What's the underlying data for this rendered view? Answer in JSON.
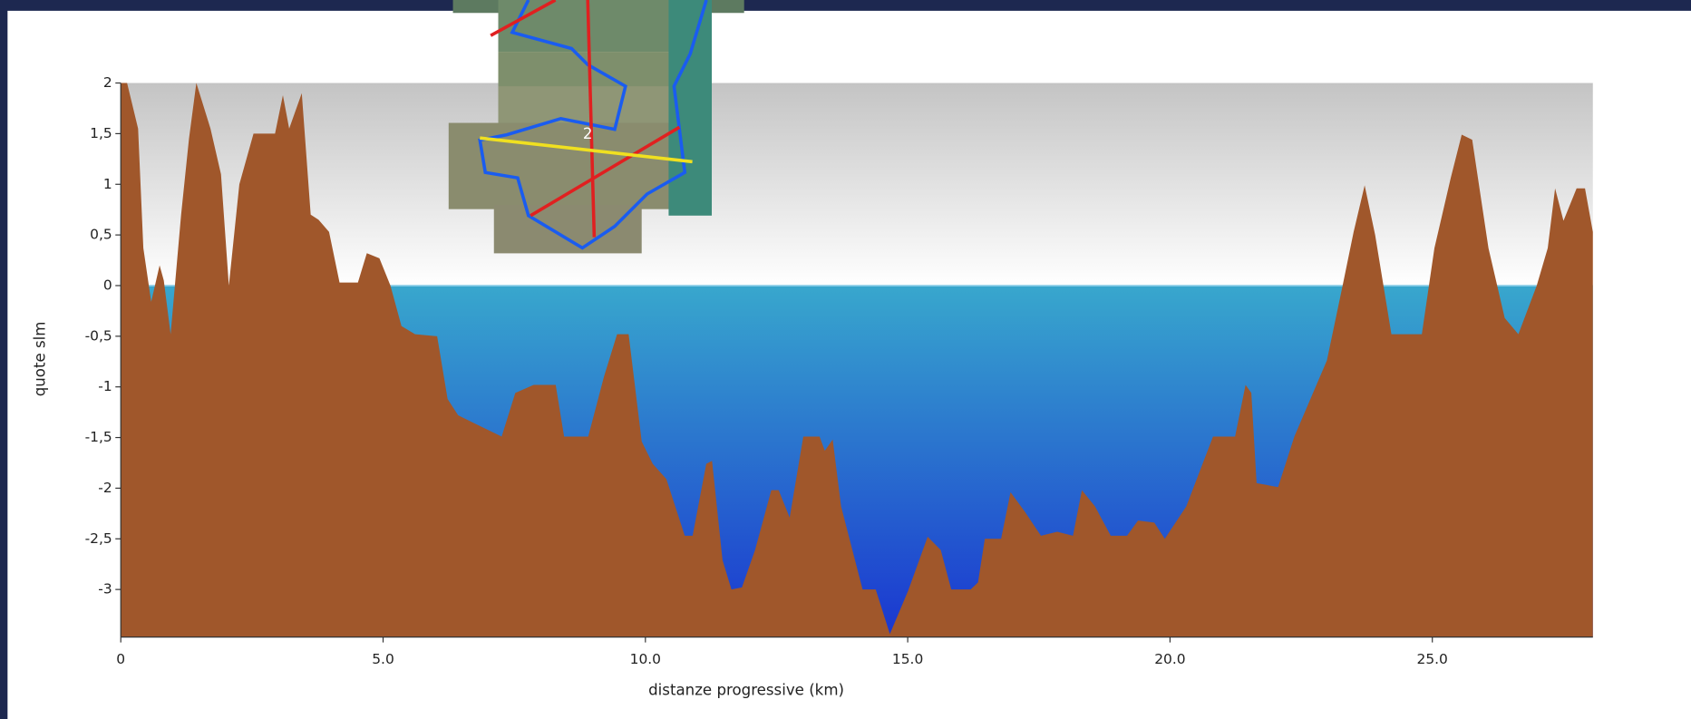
{
  "chart_data": {
    "type": "area",
    "x_label": "distanze progressive (km)",
    "y_label": "quote slm",
    "annotations": [
      "2"
    ],
    "color": "#a0572b",
    "xlim": [
      0,
      28.06
    ],
    "ylim": [
      -3.47,
      2
    ],
    "xticks": [
      0,
      {
        "value": 5,
        "label": "5.0"
      },
      {
        "value": 10,
        "label": "10.0"
      },
      {
        "value": 15,
        "label": "15.0"
      },
      {
        "value": 20,
        "label": "20.0"
      },
      {
        "value": 25,
        "label": "25.0"
      }
    ],
    "yticks": [
      2,
      {
        "value": 1.5,
        "label": "1,5"
      },
      1,
      {
        "value": 0.5,
        "label": "0,5"
      },
      0,
      {
        "value": -0.5,
        "label": "-0,5"
      },
      -1,
      {
        "value": -1.5,
        "label": "-1,5"
      },
      -2,
      {
        "value": -2.5,
        "label": "-2,5"
      },
      -3
    ],
    "x": [
      0,
      0.12,
      0.33,
      0.43,
      0.58,
      0.74,
      0.82,
      0.95,
      1.15,
      1.3,
      1.44,
      1.71,
      1.91,
      2.06,
      2.26,
      2.53,
      2.94,
      3.09,
      3.21,
      3.45,
      3.62,
      3.77,
      3.97,
      4.17,
      4.52,
      4.69,
      4.93,
      5.14,
      5.35,
      5.61,
      6.03,
      6.23,
      6.43,
      6.74,
      7.26,
      7.52,
      7.87,
      8.29,
      8.45,
      8.91,
      9.21,
      9.46,
      9.68,
      9.93,
      10.14,
      10.4,
      10.75,
      10.9,
      11.16,
      11.27,
      11.47,
      11.64,
      11.84,
      12.09,
      12.4,
      12.54,
      12.75,
      13.01,
      13.32,
      13.42,
      13.57,
      13.73,
      14.14,
      14.39,
      14.66,
      15.01,
      15.38,
      15.63,
      15.83,
      16.2,
      16.34,
      16.47,
      16.78,
      16.96,
      17.23,
      17.54,
      17.85,
      18.15,
      18.32,
      18.57,
      18.87,
      19.18,
      19.39,
      19.7,
      19.9,
      20.31,
      20.82,
      21.24,
      21.44,
      21.55,
      21.65,
      21.86,
      22.06,
      22.37,
      22.99,
      23.29,
      23.5,
      23.71,
      23.91,
      24.22,
      24.8,
      25.04,
      25.35,
      25.56,
      25.76,
      26.07,
      26.38,
      26.64,
      26.99,
      27.2,
      27.34,
      27.5,
      27.75,
      27.91,
      28.06
    ],
    "values": [
      2.0,
      2.0,
      1.55,
      0.37,
      -0.16,
      0.2,
      0.05,
      -0.48,
      0.7,
      1.45,
      2.0,
      1.55,
      1.1,
      0,
      1.0,
      1.5,
      1.5,
      1.88,
      1.55,
      1.9,
      0.7,
      0.65,
      0.53,
      0.03,
      0.03,
      0.32,
      0.27,
      0,
      -0.4,
      -0.48,
      -0.5,
      -1.12,
      -1.28,
      -1.36,
      -1.49,
      -1.06,
      -0.98,
      -0.98,
      -1.49,
      -1.49,
      -0.9,
      -0.48,
      -0.48,
      -1.54,
      -1.76,
      -1.91,
      -2.47,
      -2.47,
      -1.76,
      -1.73,
      -2.71,
      -3.0,
      -2.98,
      -2.61,
      -2.02,
      -2.02,
      -2.29,
      -1.49,
      -1.49,
      -1.63,
      -1.52,
      -2.18,
      -3.0,
      -3.0,
      -3.44,
      -3.01,
      -2.48,
      -2.61,
      -3.0,
      -3.0,
      -2.93,
      -2.5,
      -2.5,
      -2.04,
      -2.23,
      -2.47,
      -2.43,
      -2.47,
      -2.02,
      -2.18,
      -2.47,
      -2.47,
      -2.32,
      -2.34,
      -2.5,
      -2.18,
      -1.49,
      -1.49,
      -0.98,
      -1.06,
      -1.95,
      -1.97,
      -1.99,
      -1.49,
      -0.74,
      0,
      0.53,
      0.99,
      0.5,
      -0.48,
      -0.48,
      0.37,
      1.06,
      1.49,
      1.44,
      0.37,
      -0.32,
      -0.48,
      0,
      0.37,
      0.96,
      0.64,
      0.96,
      0.96,
      0.53
    ]
  }
}
